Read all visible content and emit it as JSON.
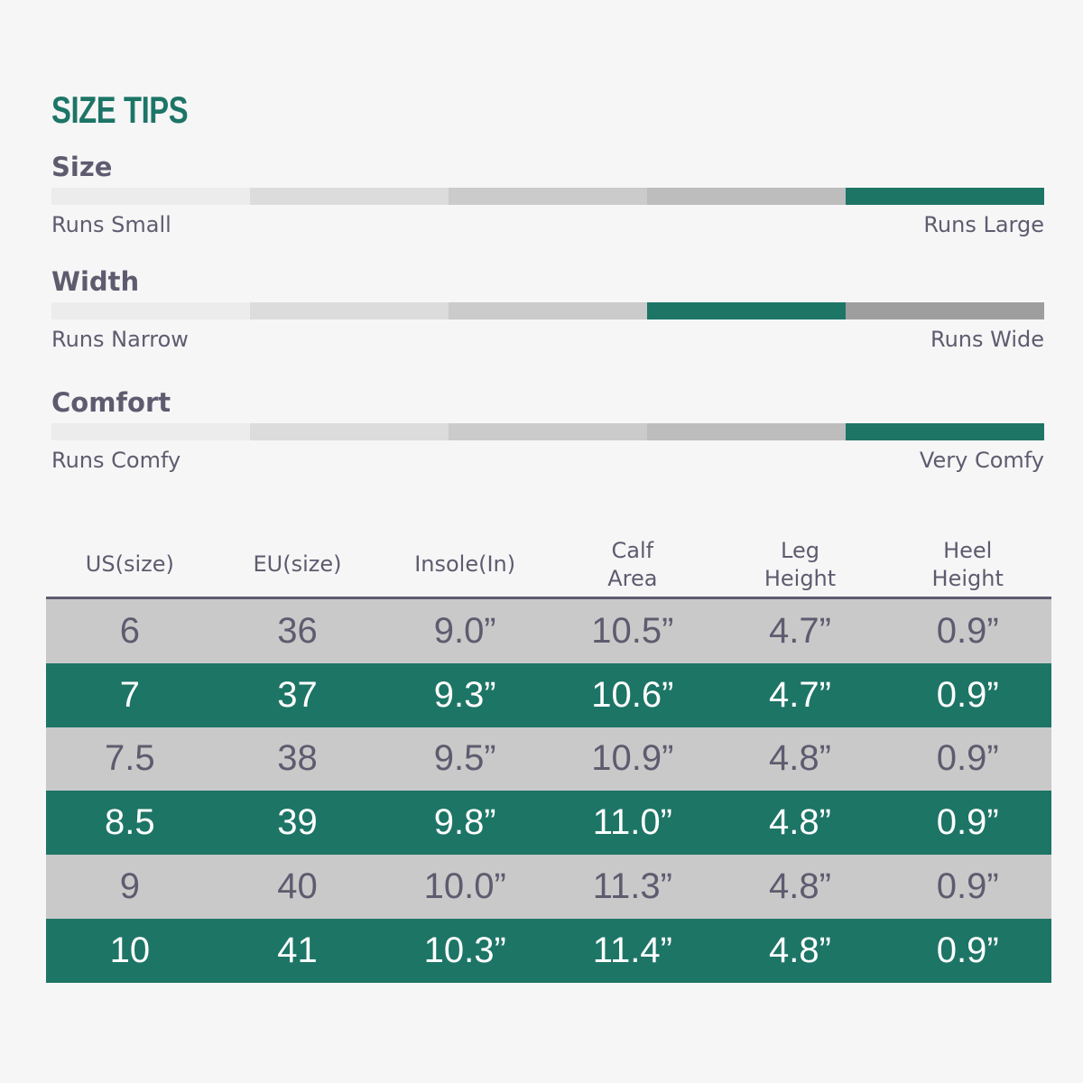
{
  "title": "SIZE TIPS",
  "colors": {
    "accent": "#1d7566",
    "text": "#5f5b6f",
    "bar_segments": [
      "#ececec",
      "#dcdcdc",
      "#cbcbcb",
      "#bdbdbd",
      "#9e9e9e"
    ],
    "row_gray": "#c9c9c9"
  },
  "metrics": [
    {
      "label": "Size",
      "low": "Runs Small",
      "high": "Runs Large",
      "active_segment": 4,
      "segment_count": 5
    },
    {
      "label": "Width",
      "low": "Runs Narrow",
      "high": "Runs Wide",
      "active_segment": 3,
      "segment_count": 5
    },
    {
      "label": "Comfort",
      "low": "Runs Comfy",
      "high": "Very Comfy",
      "active_segment": 4,
      "segment_count": 5
    }
  ],
  "table": {
    "headers": [
      "US(size)",
      "EU(size)",
      "Insole(In)",
      "Calf\nArea",
      "Leg\nHeight",
      "Heel\nHeight"
    ],
    "rows": [
      [
        "6",
        "36",
        "9.0”",
        "10.5”",
        "4.7”",
        "0.9”"
      ],
      [
        "7",
        "37",
        "9.3”",
        "10.6”",
        "4.7”",
        "0.9”"
      ],
      [
        "7.5",
        "38",
        "9.5”",
        "10.9”",
        "4.8”",
        "0.9”"
      ],
      [
        "8.5",
        "39",
        "9.8”",
        "11.0”",
        "4.8”",
        "0.9”"
      ],
      [
        "9",
        "40",
        "10.0”",
        "11.3”",
        "4.8”",
        "0.9”"
      ],
      [
        "10",
        "41",
        "10.3”",
        "11.4”",
        "4.8”",
        "0.9”"
      ]
    ]
  }
}
